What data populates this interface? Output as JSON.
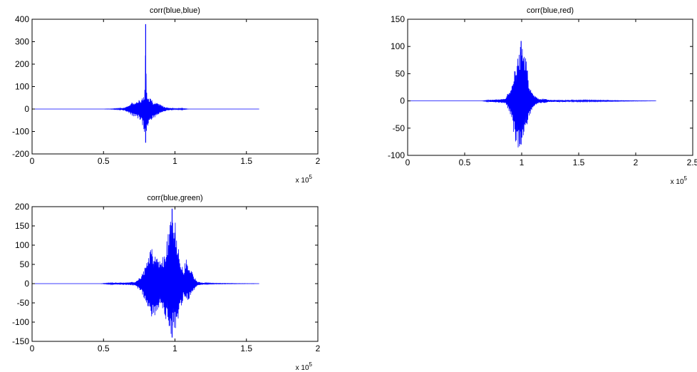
{
  "chart_data": [
    {
      "type": "line",
      "title": "corr(blue,blue)",
      "xlabel": "",
      "ylabel": "",
      "xlim": [
        0,
        200000
      ],
      "ylim": [
        -200,
        400
      ],
      "xticks": [
        0,
        50000,
        100000,
        150000,
        200000
      ],
      "xtick_labels": [
        "0",
        "0.5",
        "1",
        "1.5",
        "2"
      ],
      "yticks": [
        -200,
        -100,
        0,
        100,
        200,
        300,
        400
      ],
      "ytick_labels": [
        "-200",
        "-100",
        "0",
        "100",
        "200",
        "300",
        "400"
      ],
      "x_multiplier_label": "x 10",
      "x_multiplier_exp": "5",
      "grid": false,
      "color": "#0000ff",
      "series": [
        {
          "x_range": [
            0,
            159000
          ],
          "center": 79500,
          "envelope_x": [
            0,
            50000,
            55000,
            62000,
            65000,
            68000,
            70000,
            72000,
            74000,
            76000,
            78000,
            79000,
            79500,
            80000,
            81000,
            83000,
            85000,
            87000,
            90000,
            93000,
            96000,
            100000,
            105000,
            110000,
            159000
          ],
          "envelope_pos": [
            0,
            0,
            1,
            3,
            8,
            20,
            30,
            38,
            42,
            48,
            60,
            95,
            378,
            90,
            55,
            45,
            35,
            30,
            20,
            10,
            5,
            2,
            3,
            0,
            0
          ],
          "envelope_neg": [
            0,
            0,
            -1,
            -3,
            -8,
            -20,
            -30,
            -38,
            -42,
            -55,
            -90,
            -120,
            -150,
            -110,
            -80,
            -55,
            -45,
            -30,
            -20,
            -10,
            -5,
            -2,
            -3,
            0,
            0
          ]
        }
      ]
    },
    {
      "type": "line",
      "title": "corr(blue,red)",
      "xlabel": "",
      "ylabel": "",
      "xlim": [
        0,
        250000
      ],
      "ylim": [
        -100,
        150
      ],
      "xticks": [
        0,
        50000,
        100000,
        150000,
        200000,
        250000
      ],
      "xtick_labels": [
        "0",
        "0.5",
        "1",
        "1.5",
        "2",
        "2.5"
      ],
      "yticks": [
        -100,
        -50,
        0,
        50,
        100,
        150
      ],
      "ytick_labels": [
        "-100",
        "-50",
        "0",
        "50",
        "100",
        "150"
      ],
      "x_multiplier_label": "x 10",
      "x_multiplier_exp": "5",
      "grid": false,
      "color": "#0000ff",
      "series": [
        {
          "x_range": [
            0,
            218000
          ],
          "center": 99500,
          "envelope_x": [
            0,
            65000,
            72000,
            80000,
            86000,
            89000,
            92000,
            94000,
            96000,
            98000,
            99500,
            101000,
            103000,
            105000,
            107000,
            110000,
            115000,
            120000,
            124000,
            218000
          ],
          "envelope_pos": [
            0,
            0,
            2,
            3,
            5,
            20,
            40,
            65,
            85,
            100,
            110,
            105,
            85,
            60,
            30,
            12,
            4,
            4,
            2,
            0
          ],
          "envelope_neg": [
            0,
            0,
            -2,
            -3,
            -5,
            -20,
            -45,
            -75,
            -95,
            -90,
            -80,
            -72,
            -60,
            -45,
            -28,
            -12,
            -4,
            -4,
            -2,
            0
          ]
        }
      ]
    },
    {
      "type": "line",
      "title": "corr(blue,green)",
      "xlabel": "",
      "ylabel": "",
      "xlim": [
        0,
        200000
      ],
      "ylim": [
        -150,
        200
      ],
      "xticks": [
        0,
        50000,
        100000,
        150000,
        200000
      ],
      "xtick_labels": [
        "0",
        "0.5",
        "1",
        "1.5",
        "2"
      ],
      "yticks": [
        -150,
        -100,
        -50,
        0,
        50,
        100,
        150,
        200
      ],
      "ytick_labels": [
        "-150",
        "-100",
        "-50",
        "0",
        "50",
        "100",
        "150",
        "200"
      ],
      "x_multiplier_label": "x 10",
      "x_multiplier_exp": "5",
      "grid": false,
      "color": "#0000ff",
      "series": [
        {
          "x_range": [
            0,
            159000
          ],
          "center": 98000,
          "envelope_x": [
            0,
            48000,
            55000,
            65000,
            72000,
            76000,
            79000,
            82000,
            84000,
            86000,
            88000,
            90000,
            92000,
            94000,
            96000,
            98000,
            100000,
            102000,
            104000,
            106000,
            108000,
            110000,
            113000,
            116000,
            121000,
            126000,
            159000
          ],
          "envelope_pos": [
            0,
            0,
            2,
            3,
            5,
            20,
            45,
            80,
            95,
            85,
            65,
            55,
            75,
            105,
            150,
            195,
            170,
            110,
            55,
            40,
            70,
            55,
            20,
            5,
            2,
            1,
            0
          ],
          "envelope_neg": [
            0,
            0,
            -2,
            -3,
            -5,
            -20,
            -45,
            -75,
            -95,
            -85,
            -70,
            -60,
            -80,
            -100,
            -120,
            -140,
            -125,
            -105,
            -65,
            -40,
            -45,
            -40,
            -20,
            -5,
            -2,
            -1,
            0
          ]
        }
      ]
    }
  ]
}
